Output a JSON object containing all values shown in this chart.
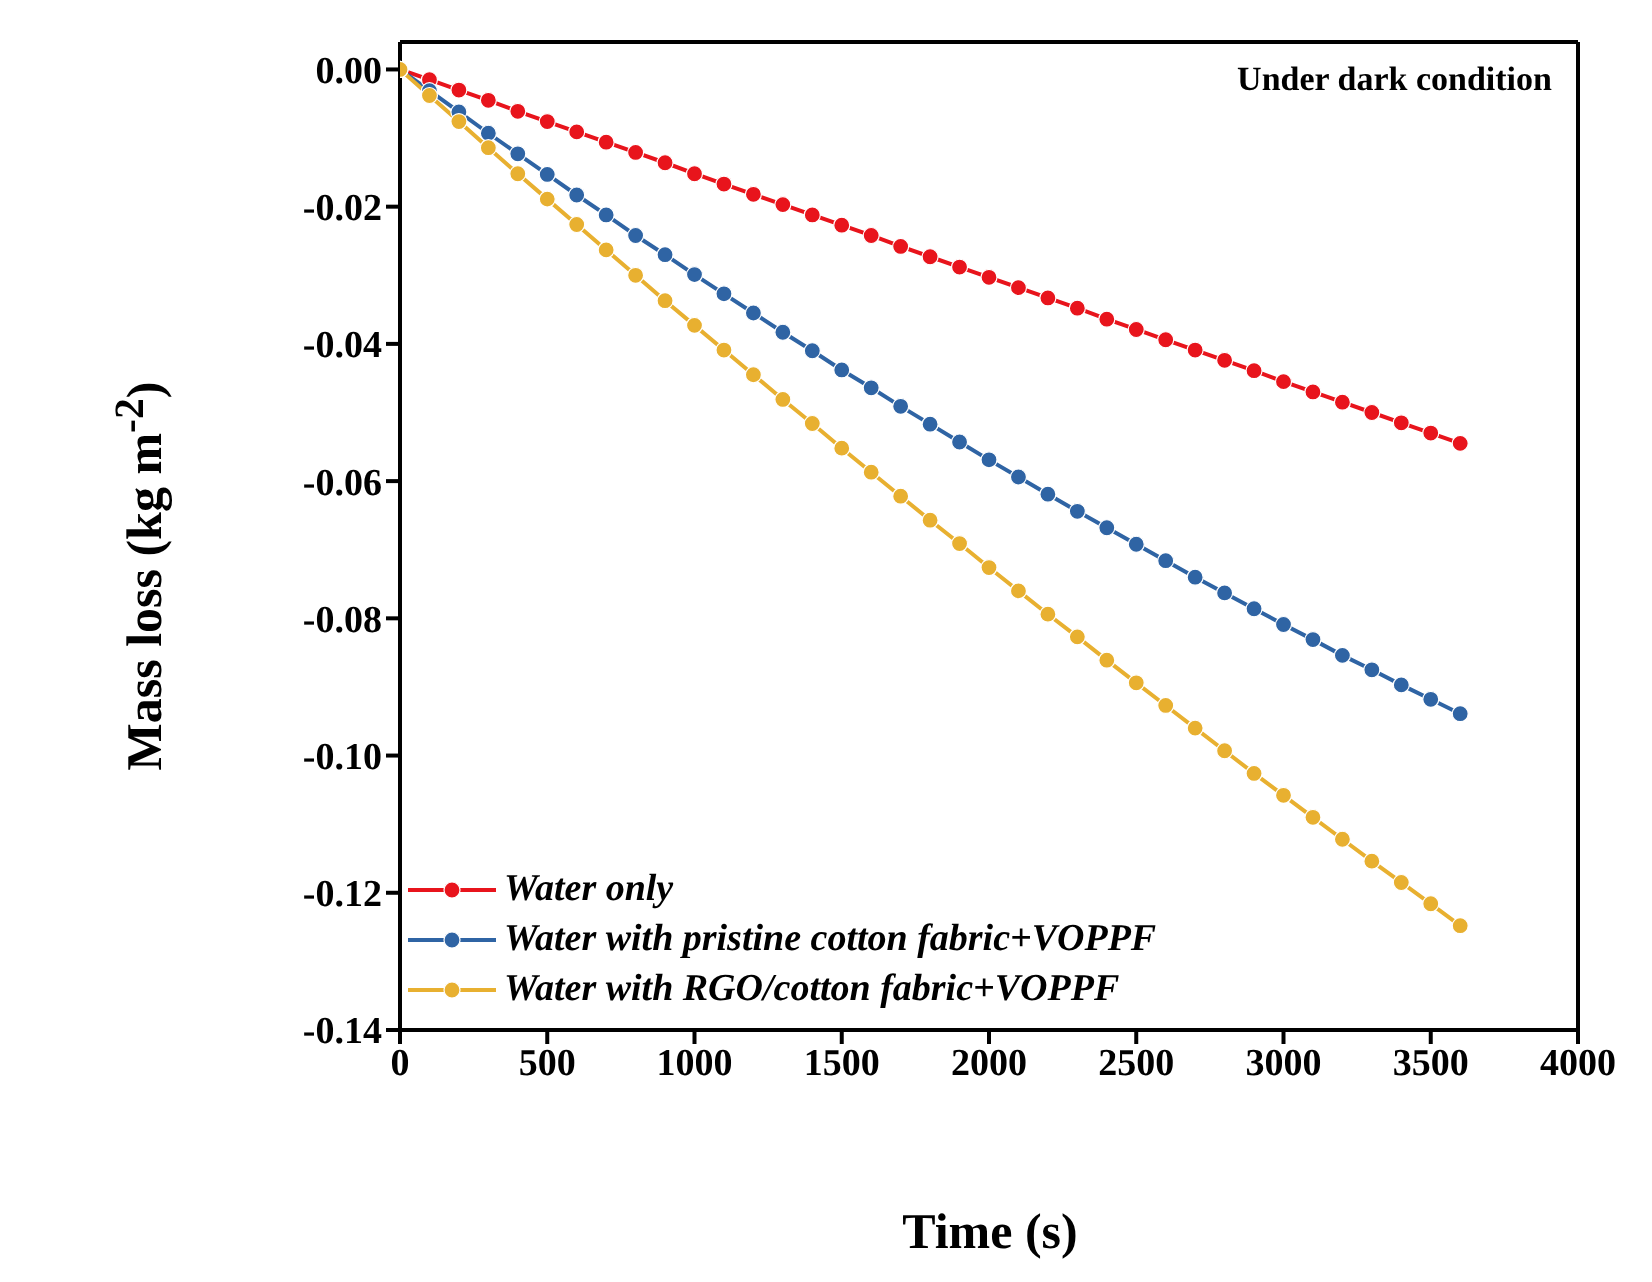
{
  "chart_data": {
    "type": "line",
    "xlabel": "Time (s)",
    "ylabel": "Mass loss (kg m$^{-2}$)",
    "annotations": [
      "Under dark condition"
    ],
    "x": [
      0,
      100,
      200,
      300,
      400,
      500,
      600,
      700,
      800,
      900,
      1000,
      1100,
      1200,
      1300,
      1400,
      1500,
      1600,
      1700,
      1800,
      1900,
      2000,
      2100,
      2200,
      2300,
      2400,
      2500,
      2600,
      2700,
      2800,
      2900,
      3000,
      3100,
      3200,
      3300,
      3400,
      3500,
      3600
    ],
    "series": [
      {
        "name": "Water only",
        "color": "#e8141c",
        "values": [
          0,
          -0.0015,
          -0.003,
          -0.0045,
          -0.0061,
          -0.0076,
          -0.0091,
          -0.0106,
          -0.0121,
          -0.0136,
          -0.0152,
          -0.0167,
          -0.0182,
          -0.0197,
          -0.0212,
          -0.0227,
          -0.0242,
          -0.0258,
          -0.0273,
          -0.0288,
          -0.0303,
          -0.0318,
          -0.0333,
          -0.0348,
          -0.0364,
          -0.0379,
          -0.0394,
          -0.0409,
          -0.0424,
          -0.0439,
          -0.0455,
          -0.047,
          -0.0485,
          -0.05,
          -0.0515,
          -0.053,
          -0.0545
        ]
      },
      {
        "name": "Water with pristine cotton fabric+VOPPF",
        "color": "#2f64a4",
        "values": [
          0,
          -0.0031,
          -0.0062,
          -0.0093,
          -0.0123,
          -0.0153,
          -0.0183,
          -0.0212,
          -0.0242,
          -0.027,
          -0.0299,
          -0.0327,
          -0.0355,
          -0.0383,
          -0.041,
          -0.0438,
          -0.0464,
          -0.0491,
          -0.0517,
          -0.0543,
          -0.0569,
          -0.0594,
          -0.0619,
          -0.0644,
          -0.0668,
          -0.0692,
          -0.0716,
          -0.074,
          -0.0763,
          -0.0786,
          -0.0809,
          -0.0831,
          -0.0854,
          -0.0875,
          -0.0897,
          -0.0918,
          -0.0939
        ]
      },
      {
        "name": "Water with RGO/cotton fabric+VOPPF",
        "color": "#e8b030",
        "values": [
          0,
          -0.0038,
          -0.0076,
          -0.0114,
          -0.0152,
          -0.0189,
          -0.0226,
          -0.0263,
          -0.03,
          -0.0337,
          -0.0373,
          -0.0409,
          -0.0445,
          -0.0481,
          -0.0516,
          -0.0552,
          -0.0587,
          -0.0622,
          -0.0657,
          -0.0691,
          -0.0726,
          -0.076,
          -0.0794,
          -0.0827,
          -0.0861,
          -0.0894,
          -0.0927,
          -0.096,
          -0.0993,
          -0.1026,
          -0.1058,
          -0.109,
          -0.1122,
          -0.1154,
          -0.1185,
          -0.1216,
          -0.1248
        ]
      }
    ],
    "xlim": [
      0,
      4000
    ],
    "xticks": [
      0,
      500,
      1000,
      1500,
      2000,
      2500,
      3000,
      3500,
      4000
    ],
    "ylim": [
      -0.14,
      0.004
    ],
    "yticks": [
      {
        "value": -0.14,
        "label": "-0.14"
      },
      {
        "value": -0.12,
        "label": "-0.12"
      },
      {
        "value": -0.1,
        "label": "-0.10"
      },
      {
        "value": -0.08,
        "label": "-0.08"
      },
      {
        "value": -0.06,
        "label": "-0.06"
      },
      {
        "value": -0.04,
        "label": "-0.04"
      },
      {
        "value": -0.02,
        "label": "-0.02"
      },
      {
        "value": 0,
        "label": "0.00"
      }
    ],
    "legend": "bottom left",
    "marker": "circle",
    "line_style": "solid",
    "grid": false
  }
}
